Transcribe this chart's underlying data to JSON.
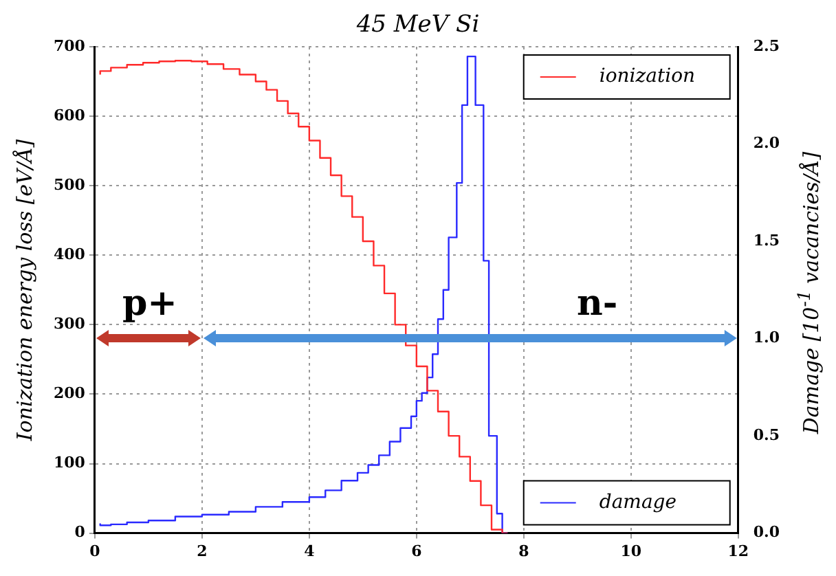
{
  "chart_data": {
    "type": "step",
    "title": "45 MeV Si",
    "ylabel": "Ionization energy loss [eV/Å]",
    "y2label": "Damage [10$^{-1}$ vacancies/Å]",
    "series": [
      {
        "name": "ionization",
        "color": "#ff2a2a",
        "x": [
          0.1,
          0.3,
          0.6,
          0.9,
          1.2,
          1.5,
          1.8,
          2.1,
          2.4,
          2.7,
          3.0,
          3.2,
          3.4,
          3.6,
          3.8,
          4.0,
          4.2,
          4.4,
          4.6,
          4.8,
          5.0,
          5.2,
          5.4,
          5.6,
          5.8,
          6.0,
          6.2,
          6.4,
          6.6,
          6.8,
          7.0,
          7.2,
          7.4,
          7.6,
          7.7
        ],
        "values": [
          660,
          665,
          670,
          674,
          677,
          679,
          680,
          679,
          675,
          668,
          660,
          650,
          638,
          622,
          604,
          585,
          565,
          540,
          515,
          485,
          455,
          420,
          385,
          345,
          300,
          270,
          240,
          205,
          175,
          140,
          110,
          75,
          40,
          5,
          0
        ]
      },
      {
        "name": "damage",
        "color": "#2a2aff",
        "axis": "y2",
        "x": [
          0.1,
          0.3,
          0.6,
          1.0,
          1.5,
          2.0,
          2.5,
          3.0,
          3.5,
          4.0,
          4.3,
          4.6,
          4.9,
          5.1,
          5.3,
          5.5,
          5.7,
          5.9,
          6.0,
          6.1,
          6.2,
          6.3,
          6.4,
          6.5,
          6.6,
          6.75,
          6.85,
          6.95,
          7.1,
          7.25,
          7.35,
          7.5,
          7.6,
          7.7
        ],
        "values": [
          0.05,
          0.04,
          0.045,
          0.055,
          0.065,
          0.085,
          0.095,
          0.11,
          0.135,
          0.16,
          0.185,
          0.22,
          0.27,
          0.31,
          0.35,
          0.4,
          0.47,
          0.54,
          0.6,
          0.68,
          0.72,
          0.8,
          0.92,
          1.1,
          1.25,
          1.52,
          1.8,
          2.2,
          2.45,
          2.2,
          1.4,
          0.5,
          0.1,
          0
        ]
      }
    ],
    "annotations": [
      "p+",
      "n-"
    ],
    "xlim": [
      0,
      12
    ],
    "xticks": [
      0,
      2,
      4,
      6,
      8,
      10,
      12
    ],
    "ylim": [
      0,
      700
    ],
    "yticks": [
      0,
      100,
      200,
      300,
      400,
      500,
      600,
      700
    ],
    "y2lim": [
      0,
      2.5
    ],
    "y2ticks": [
      {
        "value": 0,
        "label": "0.0"
      },
      {
        "value": 0.5,
        "label": "0.5"
      },
      {
        "value": 1,
        "label": "1.0"
      },
      {
        "value": 1.5,
        "label": "1.5"
      },
      {
        "value": 2,
        "label": "2.0"
      },
      {
        "value": 2.5,
        "label": "2.5"
      }
    ],
    "grid": true,
    "legend": "right",
    "line_style": "solid",
    "marker": "none"
  }
}
